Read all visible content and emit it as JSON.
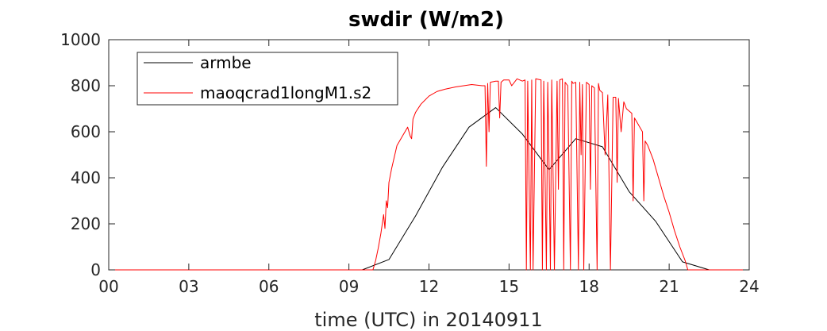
{
  "chart_data": {
    "type": "line",
    "title": "swdir  (W/m2)",
    "xlabel": "time (UTC) in 20140911",
    "ylabel": "",
    "xlim": [
      0,
      24
    ],
    "ylim": [
      0,
      1000
    ],
    "xticks": [
      0,
      3,
      6,
      9,
      12,
      15,
      18,
      21,
      24
    ],
    "xtick_labels": [
      "00",
      "03",
      "06",
      "09",
      "12",
      "15",
      "18",
      "21",
      "24"
    ],
    "yticks": [
      0,
      200,
      400,
      600,
      800,
      1000
    ],
    "ytick_labels": [
      "0",
      "200",
      "400",
      "600",
      "800",
      "1000"
    ],
    "legend_position": "top-left",
    "grid": false,
    "series": [
      {
        "name": "armbe",
        "color": "#000000",
        "x": [
          0,
          1,
          2,
          3,
          4,
          5,
          6,
          7,
          8,
          9,
          9.5,
          10.5,
          11.5,
          12.5,
          13.5,
          14.5,
          15.5,
          16.5,
          17.5,
          18.5,
          19.5,
          20.5,
          21.5,
          22.5,
          23.5,
          24
        ],
        "y": [
          0,
          0,
          0,
          0,
          0,
          0,
          0,
          0,
          0,
          0,
          0,
          45,
          235,
          445,
          620,
          705,
          590,
          435,
          570,
          535,
          340,
          210,
          35,
          0,
          0,
          0
        ]
      },
      {
        "name": "maoqcrad1longM1.s2",
        "color": "#ff0000",
        "x": [
          0,
          9.9,
          10.0,
          10.1,
          10.2,
          10.3,
          10.35,
          10.4,
          10.45,
          10.5,
          10.6,
          10.7,
          10.8,
          11.0,
          11.2,
          11.3,
          11.35,
          11.4,
          11.5,
          11.7,
          12.0,
          12.3,
          12.6,
          13.0,
          13.3,
          13.6,
          14.0,
          14.1,
          14.15,
          14.2,
          14.25,
          14.3,
          14.5,
          14.6,
          14.65,
          14.7,
          14.8,
          15.0,
          15.1,
          15.3,
          15.5,
          15.6,
          15.65,
          15.7,
          15.75,
          15.8,
          15.85,
          15.9,
          16.0,
          16.2,
          16.25,
          16.3,
          16.4,
          16.45,
          16.5,
          16.55,
          16.6,
          16.7,
          16.8,
          16.85,
          16.9,
          17.0,
          17.05,
          17.1,
          17.2,
          17.3,
          17.35,
          17.4,
          17.5,
          17.6,
          17.65,
          17.7,
          17.75,
          17.8,
          17.9,
          18.0,
          18.05,
          18.1,
          18.2,
          18.3,
          18.35,
          18.4,
          18.5,
          18.6,
          18.7,
          18.8,
          18.9,
          19.0,
          19.05,
          19.1,
          19.2,
          19.3,
          19.4,
          19.5,
          19.6,
          19.65,
          19.7,
          19.8,
          19.9,
          20.0,
          20.05,
          20.1,
          20.2,
          20.4,
          20.6,
          20.8,
          21.0,
          21.2,
          21.4,
          21.6,
          21.7,
          21.8,
          21.9,
          22.0,
          24.0
        ],
        "y": [
          0,
          0,
          40,
          95,
          160,
          240,
          180,
          300,
          270,
          380,
          440,
          490,
          540,
          580,
          620,
          580,
          570,
          655,
          685,
          720,
          755,
          775,
          785,
          795,
          800,
          805,
          800,
          800,
          450,
          810,
          600,
          815,
          820,
          820,
          660,
          815,
          825,
          825,
          800,
          830,
          820,
          825,
          0,
          820,
          400,
          0,
          825,
          0,
          830,
          825,
          0,
          820,
          0,
          815,
          460,
          0,
          825,
          0,
          820,
          350,
          825,
          830,
          0,
          815,
          800,
          0,
          820,
          810,
          815,
          0,
          815,
          500,
          805,
          0,
          815,
          805,
          350,
          800,
          790,
          0,
          810,
          780,
          770,
          500,
          760,
          0,
          750,
          750,
          380,
          745,
          600,
          730,
          700,
          690,
          680,
          300,
          660,
          640,
          620,
          600,
          300,
          560,
          540,
          480,
          400,
          320,
          250,
          170,
          100,
          40,
          0,
          0,
          0,
          0,
          0
        ]
      }
    ]
  }
}
